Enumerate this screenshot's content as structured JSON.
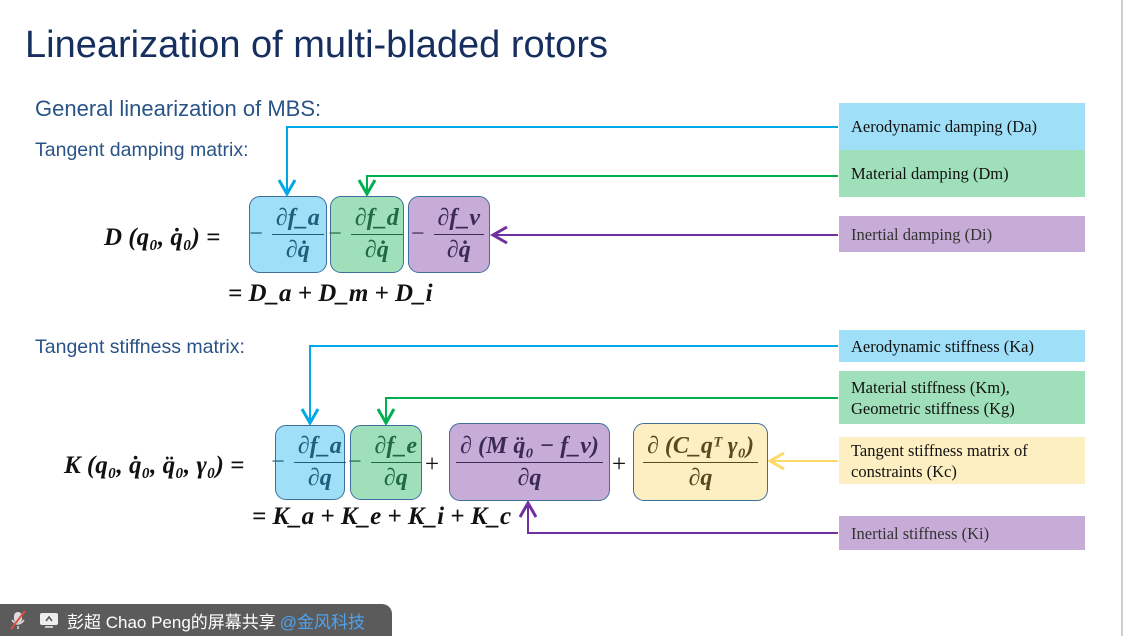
{
  "slide": {
    "title": "Linearization of multi-bladed rotors",
    "subtitle": "General linearization of MBS:",
    "damping_heading": "Tangent damping matrix:",
    "stiffness_heading": "Tangent stiffness matrix:"
  },
  "damping": {
    "lhs": "D (q₀, q̇₀) =",
    "terms": [
      {
        "sign": "−",
        "num": "∂f_a",
        "den": "∂q̇",
        "color": "#9fdff7"
      },
      {
        "sign": "−",
        "num": "∂f_d",
        "den": "∂q̇",
        "color": "#9fe0ba"
      },
      {
        "sign": "−",
        "num": "∂f_v",
        "den": "∂q̇",
        "color": "#c6acd6"
      }
    ],
    "sum": "= D_a + D_m + D_i"
  },
  "stiffness": {
    "lhs": "K (q₀, q̇₀, q̈₀, γ₀) =",
    "terms": [
      {
        "sign": "−",
        "num": "∂f_a",
        "den": "∂q",
        "color": "#9fdff7"
      },
      {
        "sign": "−",
        "num": "∂f_e",
        "den": "∂q",
        "color": "#9fe0ba"
      },
      {
        "sign": "+",
        "num": "∂ (M q̈₀ − f_v)",
        "den": "∂q",
        "color": "#c6acd6"
      },
      {
        "sign": "+",
        "num": "∂ (C_qᵀ γ₀)",
        "den": "∂q",
        "color": "#fdefc2"
      }
    ],
    "sum": "= K_a + K_e + K_i + K_c"
  },
  "labels": {
    "aero_damping": "Aerodynamic damping (Da)",
    "material_damping": "Material damping (Dm)",
    "inertial_damping": "Inertial damping (Di)",
    "aero_stiffness": "Aerodynamic stiffness (Ka)",
    "material_stiffness": "Material stiffness (Km),",
    "geometric_stiffness": "Geometric stiffness (Kg)",
    "constraint_stiffness": "Tangent stiffness matrix of constraints (Kc)",
    "inertial_stiffness": "Inertial stiffness (Ki)"
  },
  "colors": {
    "blue": "#00a8e8",
    "green": "#00b050",
    "purple": "#7030a0",
    "yellow": "#ffd966"
  },
  "share_bar": {
    "text": "彭超 Chao Peng的屏幕共享",
    "org": "@金风科技",
    "mic_icon": "mic-muted-icon",
    "screen_icon": "screen-share-icon"
  }
}
